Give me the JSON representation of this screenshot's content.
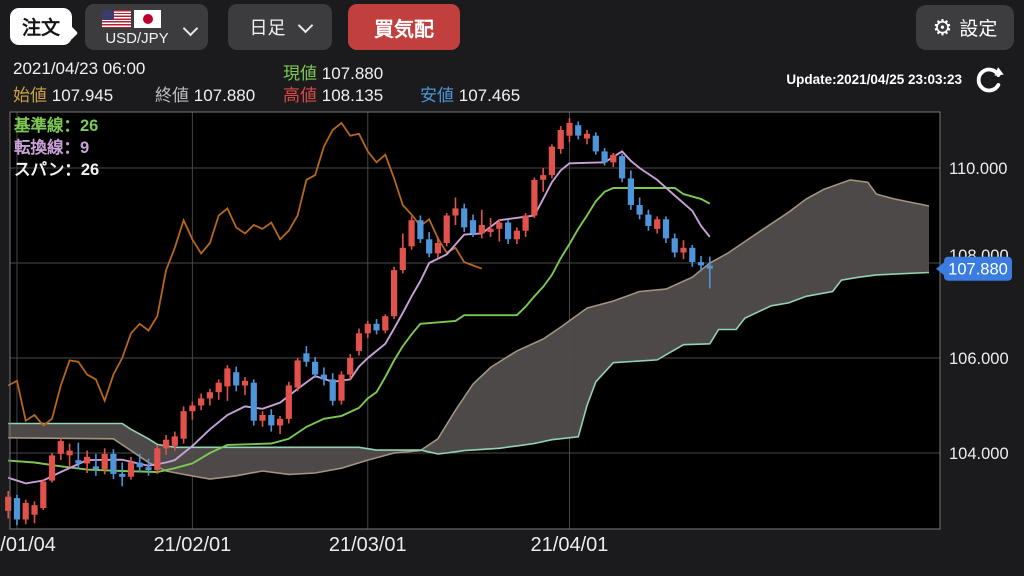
{
  "toolbar": {
    "order": "注文",
    "pair": "USD/JPY",
    "timeframe": "日足",
    "quote": "買気配",
    "settings": "設定"
  },
  "info": {
    "datetime": "2021/04/23 06:00",
    "open_label": "始値",
    "open": "107.945",
    "close_label": "終値",
    "close": "107.880",
    "current_label": "現値",
    "current": "107.880",
    "high_label": "高値",
    "high": "108.135",
    "low_label": "安値",
    "low": "107.465",
    "update": "Update:2021/04/25 23:03:23"
  },
  "legend": [
    {
      "text": "基準線：26",
      "color": "#7ec855"
    },
    {
      "text": "転換線：9",
      "color": "#c9a0d8"
    },
    {
      "text": "スパン：26",
      "color": "#f2f2f2"
    }
  ],
  "colors": {
    "page_bg": "#1b1b1d",
    "plot_bg": "#000000",
    "grid": "#474747",
    "border": "#7a7a7a",
    "up_candle": "#e0524b",
    "down_candle": "#4e95d9",
    "tenkan": "#c9a0d8",
    "kijun": "#7cc852",
    "lagging": "#b5661f",
    "senkou_a": "#a3937f",
    "senkou_b": "#93d2b5",
    "cloud_fill": "#514d4c",
    "axis_text": "#ededed",
    "badge_bg": "#3a7ce0",
    "badge_text": "#ffffff"
  },
  "axes": {
    "y_ticks": [
      {
        "price": 110,
        "text": "110.000"
      },
      {
        "price": 108,
        "text": "108.000"
      },
      {
        "price": 106,
        "text": "106.000"
      },
      {
        "price": 104,
        "text": "104.000"
      }
    ],
    "x_ticks": [
      {
        "i": 1,
        "text": "21/01/04"
      },
      {
        "i": 21,
        "text": "21/02/01"
      },
      {
        "i": 41,
        "text": "21/03/01"
      },
      {
        "i": 64,
        "text": "21/04/01"
      }
    ],
    "current_badge": {
      "price": 107.88,
      "text": "107.880"
    }
  },
  "chart_data": {
    "type": "candlestick-ichimoku",
    "pair": "USD/JPY",
    "interval": "daily",
    "x_range_labels": [
      "21/01/04",
      "21/04/23"
    ],
    "y_visible_range": [
      102.4,
      111.2
    ],
    "candles_ohlc": [
      [
        102.78,
        103.2,
        102.62,
        103.08
      ],
      [
        103.05,
        103.12,
        102.48,
        102.6
      ],
      [
        102.6,
        103.02,
        102.5,
        102.95
      ],
      [
        102.7,
        102.98,
        102.52,
        102.9
      ],
      [
        102.84,
        103.45,
        102.8,
        103.4
      ],
      [
        103.42,
        104.0,
        103.38,
        103.95
      ],
      [
        103.98,
        104.32,
        103.85,
        104.25
      ],
      [
        103.95,
        104.2,
        103.7,
        104.05
      ],
      [
        103.85,
        104.22,
        103.65,
        103.78
      ],
      [
        103.78,
        104.05,
        103.58,
        103.92
      ],
      [
        103.72,
        103.98,
        103.52,
        103.66
      ],
      [
        103.66,
        104.1,
        103.55,
        103.98
      ],
      [
        103.98,
        104.08,
        103.45,
        103.56
      ],
      [
        103.56,
        103.8,
        103.3,
        103.5
      ],
      [
        103.5,
        103.92,
        103.44,
        103.8
      ],
      [
        103.8,
        103.98,
        103.6,
        103.7
      ],
      [
        103.7,
        103.88,
        103.52,
        103.64
      ],
      [
        103.64,
        104.16,
        103.56,
        104.1
      ],
      [
        104.1,
        104.38,
        103.96,
        104.28
      ],
      [
        104.15,
        104.45,
        104.05,
        104.35
      ],
      [
        104.3,
        104.98,
        104.2,
        104.88
      ],
      [
        104.88,
        105.08,
        104.7,
        105.0
      ],
      [
        105.0,
        105.25,
        104.9,
        105.15
      ],
      [
        105.15,
        105.35,
        105.0,
        105.28
      ],
      [
        105.28,
        105.55,
        105.12,
        105.48
      ],
      [
        105.4,
        105.85,
        105.1,
        105.78
      ],
      [
        105.7,
        105.82,
        105.3,
        105.42
      ],
      [
        105.42,
        105.6,
        105.22,
        105.52
      ],
      [
        105.48,
        105.55,
        104.58,
        104.68
      ],
      [
        104.68,
        104.88,
        104.55,
        104.8
      ],
      [
        104.8,
        104.92,
        104.45,
        104.58
      ],
      [
        104.58,
        104.78,
        104.4,
        104.72
      ],
      [
        104.72,
        105.5,
        104.62,
        105.42
      ],
      [
        105.38,
        106.0,
        105.3,
        105.95
      ],
      [
        106.1,
        106.25,
        105.82,
        105.92
      ],
      [
        105.92,
        106.02,
        105.58,
        105.65
      ],
      [
        105.65,
        105.8,
        105.42,
        105.55
      ],
      [
        105.55,
        105.68,
        105.0,
        105.1
      ],
      [
        105.1,
        105.72,
        105.02,
        105.65
      ],
      [
        105.65,
        106.08,
        105.55,
        106.0
      ],
      [
        106.15,
        106.62,
        106.05,
        106.52
      ],
      [
        106.52,
        106.78,
        106.42,
        106.72
      ],
      [
        106.72,
        106.82,
        106.5,
        106.58
      ],
      [
        106.58,
        106.92,
        106.52,
        106.88
      ],
      [
        106.88,
        107.92,
        106.82,
        107.85
      ],
      [
        107.85,
        108.62,
        107.78,
        108.32
      ],
      [
        108.35,
        108.98,
        108.28,
        108.9
      ],
      [
        108.9,
        109.0,
        108.42,
        108.5
      ],
      [
        108.5,
        108.65,
        108.12,
        108.2
      ],
      [
        108.2,
        108.55,
        108.1,
        108.42
      ],
      [
        108.42,
        109.05,
        108.35,
        109.0
      ],
      [
        109.0,
        109.38,
        108.8,
        109.15
      ],
      [
        109.15,
        109.25,
        108.65,
        108.75
      ],
      [
        108.9,
        109.02,
        108.55,
        108.62
      ],
      [
        108.62,
        109.12,
        108.52,
        108.8
      ],
      [
        108.65,
        108.95,
        108.55,
        108.72
      ],
      [
        108.72,
        108.92,
        108.45,
        108.85
      ],
      [
        108.85,
        108.9,
        108.4,
        108.5
      ],
      [
        108.5,
        108.75,
        108.4,
        108.68
      ],
      [
        108.68,
        109.05,
        108.55,
        109.0
      ],
      [
        109.0,
        109.8,
        108.95,
        109.75
      ],
      [
        109.75,
        110.0,
        109.5,
        109.85
      ],
      [
        109.85,
        110.5,
        109.78,
        110.45
      ],
      [
        110.4,
        110.88,
        110.3,
        110.8
      ],
      [
        110.68,
        111.05,
        110.55,
        110.95
      ],
      [
        110.9,
        110.98,
        110.6,
        110.68
      ],
      [
        110.62,
        110.8,
        110.5,
        110.72
      ],
      [
        110.68,
        110.75,
        110.28,
        110.35
      ],
      [
        110.35,
        110.42,
        110.05,
        110.12
      ],
      [
        110.12,
        110.32,
        110.02,
        110.28
      ],
      [
        110.25,
        110.3,
        109.7,
        109.78
      ],
      [
        109.78,
        109.95,
        109.12,
        109.22
      ],
      [
        109.22,
        109.38,
        108.92,
        109.02
      ],
      [
        109.02,
        109.12,
        108.68,
        108.78
      ],
      [
        108.72,
        108.98,
        108.62,
        108.92
      ],
      [
        108.92,
        108.98,
        108.42,
        108.52
      ],
      [
        108.52,
        108.62,
        108.12,
        108.22
      ],
      [
        108.22,
        108.48,
        108.08,
        108.32
      ],
      [
        108.32,
        108.38,
        107.92,
        108.02
      ],
      [
        108.02,
        108.15,
        107.85,
        107.95
      ],
      [
        107.945,
        108.135,
        107.465,
        107.88
      ]
    ],
    "tenkan_9": [
      [
        0,
        103.48
      ],
      [
        2,
        103.36
      ],
      [
        4,
        103.42
      ],
      [
        6,
        103.6
      ],
      [
        9,
        103.85
      ],
      [
        13,
        103.86
      ],
      [
        16,
        103.73
      ],
      [
        18,
        103.8
      ],
      [
        19,
        103.85
      ],
      [
        21,
        104.15
      ],
      [
        23,
        104.5
      ],
      [
        25,
        104.8
      ],
      [
        27,
        104.98
      ],
      [
        29,
        104.93
      ],
      [
        31,
        105.06
      ],
      [
        33,
        105.35
      ],
      [
        35,
        105.62
      ],
      [
        37,
        105.5
      ],
      [
        39,
        105.55
      ],
      [
        40,
        105.82
      ],
      [
        41,
        106.0
      ],
      [
        43,
        106.3
      ],
      [
        44,
        106.62
      ],
      [
        45,
        106.95
      ],
      [
        46,
        107.3
      ],
      [
        47,
        107.62
      ],
      [
        48,
        108.0
      ],
      [
        50,
        108.18
      ],
      [
        52,
        108.6
      ],
      [
        54,
        108.62
      ],
      [
        56,
        108.9
      ],
      [
        60,
        109.0
      ],
      [
        61,
        109.35
      ],
      [
        62,
        109.7
      ],
      [
        63,
        109.95
      ],
      [
        64,
        110.1
      ],
      [
        68,
        110.12
      ],
      [
        70,
        110.35
      ],
      [
        71,
        110.15
      ],
      [
        72,
        110.0
      ],
      [
        74,
        109.75
      ],
      [
        76,
        109.42
      ],
      [
        78,
        109.1
      ],
      [
        79,
        108.78
      ],
      [
        80,
        108.55
      ]
    ],
    "kijun_26": [
      [
        0,
        103.84
      ],
      [
        3,
        103.8
      ],
      [
        6,
        103.72
      ],
      [
        9,
        103.65
      ],
      [
        13,
        103.62
      ],
      [
        17,
        103.6
      ],
      [
        19,
        103.68
      ],
      [
        21,
        103.78
      ],
      [
        23,
        104.0
      ],
      [
        25,
        104.17
      ],
      [
        30,
        104.2
      ],
      [
        32,
        104.3
      ],
      [
        34,
        104.55
      ],
      [
        36,
        104.72
      ],
      [
        38,
        104.78
      ],
      [
        40,
        104.95
      ],
      [
        41,
        105.15
      ],
      [
        42,
        105.28
      ],
      [
        43,
        105.6
      ],
      [
        44,
        105.95
      ],
      [
        45,
        106.25
      ],
      [
        46,
        106.5
      ],
      [
        47,
        106.72
      ],
      [
        51,
        106.78
      ],
      [
        52,
        106.9
      ],
      [
        58,
        106.9
      ],
      [
        59,
        107.08
      ],
      [
        60,
        107.3
      ],
      [
        61,
        107.5
      ],
      [
        62,
        107.75
      ],
      [
        63,
        108.1
      ],
      [
        64,
        108.4
      ],
      [
        65,
        108.72
      ],
      [
        66,
        109.0
      ],
      [
        67,
        109.3
      ],
      [
        68,
        109.5
      ],
      [
        69,
        109.58
      ],
      [
        76,
        109.58
      ],
      [
        77,
        109.45
      ],
      [
        79,
        109.35
      ],
      [
        80,
        109.25
      ]
    ],
    "lagging_span_shift": -26,
    "senkou_a": [
      [
        0,
        104.32
      ],
      [
        12,
        104.3
      ],
      [
        14,
        104.05
      ],
      [
        16,
        103.8
      ],
      [
        18,
        103.62
      ],
      [
        20,
        103.55
      ],
      [
        23,
        103.45
      ],
      [
        26,
        103.52
      ],
      [
        29,
        103.62
      ],
      [
        32,
        103.55
      ],
      [
        35,
        103.58
      ],
      [
        38,
        103.68
      ],
      [
        41,
        103.85
      ],
      [
        44,
        104.0
      ],
      [
        47,
        104.05
      ],
      [
        49,
        104.3
      ],
      [
        51,
        104.9
      ],
      [
        53,
        105.45
      ],
      [
        55,
        105.8
      ],
      [
        58,
        106.15
      ],
      [
        61,
        106.4
      ],
      [
        63,
        106.65
      ],
      [
        66,
        107.05
      ],
      [
        69,
        107.2
      ],
      [
        72,
        107.4
      ],
      [
        75,
        107.45
      ],
      [
        78,
        107.7
      ],
      [
        80,
        108.0
      ],
      [
        82,
        108.2
      ],
      [
        86,
        108.7
      ],
      [
        89,
        109.07
      ],
      [
        91,
        109.35
      ],
      [
        93,
        109.55
      ],
      [
        96,
        109.75
      ],
      [
        98,
        109.7
      ],
      [
        99,
        109.45
      ],
      [
        101,
        109.35
      ],
      [
        105,
        109.2
      ]
    ],
    "senkou_b": [
      [
        0,
        104.62
      ],
      [
        13,
        104.62
      ],
      [
        14,
        104.5
      ],
      [
        16,
        104.3
      ],
      [
        17,
        104.18
      ],
      [
        19,
        104.12
      ],
      [
        40,
        104.12
      ],
      [
        42,
        104.06
      ],
      [
        47,
        104.06
      ],
      [
        49,
        103.98
      ],
      [
        50,
        104.0
      ],
      [
        52,
        104.05
      ],
      [
        56,
        104.1
      ],
      [
        58,
        104.15
      ],
      [
        60,
        104.2
      ],
      [
        62,
        104.28
      ],
      [
        65,
        104.34
      ],
      [
        66,
        105.0
      ],
      [
        67,
        105.5
      ],
      [
        69,
        105.9
      ],
      [
        74,
        105.96
      ],
      [
        77,
        106.28
      ],
      [
        80,
        106.3
      ],
      [
        81,
        106.6
      ],
      [
        83,
        106.6
      ],
      [
        84,
        106.84
      ],
      [
        87,
        107.1
      ],
      [
        89,
        107.16
      ],
      [
        91,
        107.3
      ],
      [
        94,
        107.4
      ],
      [
        95,
        107.64
      ],
      [
        97,
        107.7
      ],
      [
        99,
        107.75
      ],
      [
        105,
        107.8
      ]
    ]
  }
}
